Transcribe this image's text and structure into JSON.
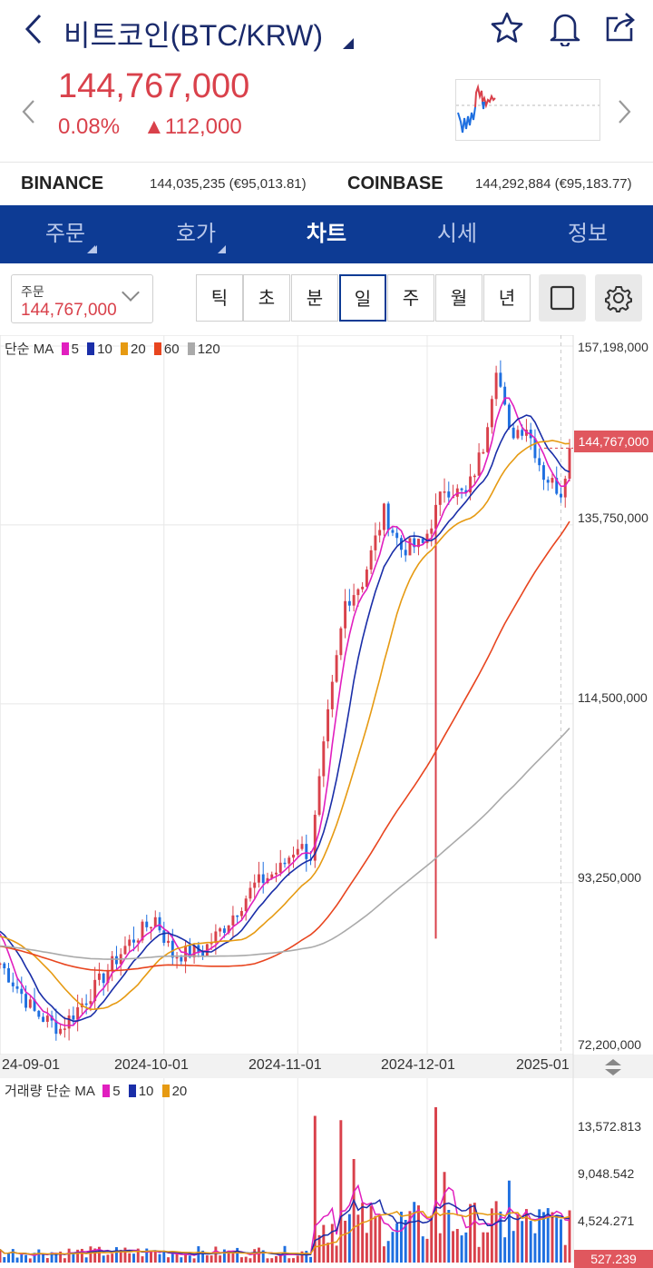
{
  "header": {
    "title": "비트코인(BTC/KRW)",
    "price": "144,767,000",
    "change_pct": "0.08%",
    "change_abs": "▲112,000",
    "icons": [
      "back-icon",
      "star-icon",
      "bell-icon",
      "share-icon",
      "chevron-left-icon",
      "chevron-right-icon"
    ]
  },
  "exchanges": [
    {
      "name": "BINANCE",
      "value": "144,035,235 (€95,013.81)"
    },
    {
      "name": "COINBASE",
      "value": "144,292,884 (€95,183.77)"
    }
  ],
  "tabs": [
    "주문",
    "호가",
    "차트",
    "시세",
    "정보"
  ],
  "active_tab": "차트",
  "order_box": {
    "label": "주문",
    "value": "144,767,000"
  },
  "periods": [
    "틱",
    "초",
    "분",
    "일",
    "주",
    "월",
    "년"
  ],
  "selected_period": "일",
  "colors": {
    "up": "#d9414b",
    "down": "#1e6fe0",
    "brand": "#0d3b94",
    "ma5": "#e11fbf",
    "ma10": "#1a2ea8",
    "ma20": "#e69a12",
    "ma60": "#e8451f",
    "ma120": "#aaaaaa"
  },
  "price_chart": {
    "legend_title": "단순 MA",
    "ma_periods": [
      "5",
      "10",
      "20",
      "60",
      "120"
    ],
    "y_ticks": [
      "157,198,000",
      "135,750,000",
      "114,500,000",
      "93,250,000",
      "72,200,000"
    ],
    "current_price_tag": "144,767,000",
    "x_ticks": [
      "24-09-01",
      "2024-10-01",
      "2024-11-01",
      "2024-12-01",
      "2025-01"
    ]
  },
  "volume_chart": {
    "legend_title": "거래량 단순 MA",
    "ma_periods": [
      "5",
      "10",
      "20"
    ],
    "y_ticks": [
      "13,572.813",
      "9,048.542",
      "4,524.271"
    ],
    "current_volume_tag": "527.239"
  },
  "chart_data": {
    "type": "candlestick",
    "price": {
      "x_range": [
        "2024-08-24",
        "2025-01-03"
      ],
      "y_range": [
        72200000,
        157198000
      ],
      "anchors": [
        [
          "2024-08-24",
          82000000
        ],
        [
          "2024-09-01",
          76000000
        ],
        [
          "2024-09-07",
          74000000
        ],
        [
          "2024-09-15",
          79000000
        ],
        [
          "2024-09-22",
          84000000
        ],
        [
          "2024-09-29",
          87500000
        ],
        [
          "2024-10-03",
          83000000
        ],
        [
          "2024-10-10",
          83500000
        ],
        [
          "2024-10-15",
          86500000
        ],
        [
          "2024-10-22",
          91500000
        ],
        [
          "2024-10-28",
          93500000
        ],
        [
          "2024-11-01",
          96500000
        ],
        [
          "2024-11-04",
          95000000
        ],
        [
          "2024-11-06",
          104000000
        ],
        [
          "2024-11-08",
          112000000
        ],
        [
          "2024-11-12",
          126000000
        ],
        [
          "2024-11-16",
          128500000
        ],
        [
          "2024-11-21",
          137000000
        ],
        [
          "2024-11-25",
          132500000
        ],
        [
          "2024-11-30",
          133000000
        ],
        [
          "2024-12-05",
          140000000
        ],
        [
          "2024-12-10",
          139000000
        ],
        [
          "2024-12-14",
          145000000
        ],
        [
          "2024-12-17",
          155000000
        ],
        [
          "2024-12-20",
          146500000
        ],
        [
          "2024-12-24",
          147500000
        ],
        [
          "2024-12-28",
          141500000
        ],
        [
          "2025-01-01",
          139500000
        ],
        [
          "2025-01-03",
          144767000
        ]
      ]
    },
    "volume": {
      "y_range": [
        0,
        18000
      ],
      "spikes": [
        [
          "2024-11-05",
          17000
        ],
        [
          "2024-11-11",
          16500
        ],
        [
          "2024-11-14",
          12000
        ],
        [
          "2024-12-03",
          18000
        ],
        [
          "2024-12-05",
          10500
        ],
        [
          "2024-12-20",
          9500
        ]
      ]
    }
  }
}
